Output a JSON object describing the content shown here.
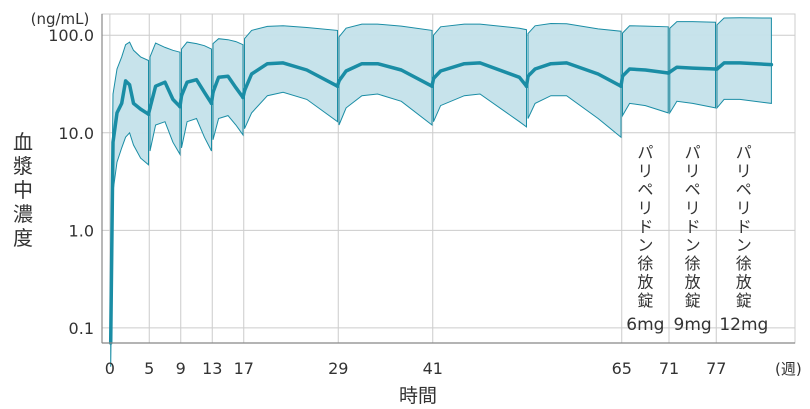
{
  "chart_data": {
    "type": "area",
    "y_unit": "(ng/mL)",
    "x_unit": "(週)",
    "xlabel": "時間",
    "ylabel": "血漿中濃度",
    "y_scale": "log",
    "ylim": [
      0.07,
      165
    ],
    "xlim": [
      -1,
      87
    ],
    "y_ticks": [
      0.1,
      1.0,
      10.0,
      100.0
    ],
    "y_tick_labels": [
      "0.1",
      "1.0",
      "10.0",
      "100.0"
    ],
    "x_ticks": [
      0,
      5,
      9,
      13,
      17,
      29,
      41,
      65,
      71,
      77
    ],
    "grid": true,
    "colors": {
      "line": "#1a8da5",
      "band": "#c4e1ea",
      "band_edge": "#1a8da5",
      "grid": "#cccccc",
      "axis": "#888888"
    },
    "series": [
      {
        "x": [
          0.1,
          0.4,
          0.9,
          1.5,
          2,
          2.5,
          3,
          3.9,
          4.9
        ],
        "median": [
          0.07,
          8,
          16,
          20,
          34,
          31,
          20,
          17.5,
          15.5
        ],
        "upper": [
          0.2,
          25,
          45,
          60,
          80,
          85,
          70,
          60,
          55
        ],
        "lower": [
          0.04,
          2.5,
          5,
          7,
          9,
          10,
          7.5,
          5.5,
          4.7
        ]
      },
      {
        "x": [
          5.1,
          5.8,
          7,
          8,
          8.9
        ],
        "median": [
          18,
          30,
          33,
          22,
          18.5
        ],
        "upper": [
          60,
          83,
          75,
          70,
          67
        ],
        "lower": [
          6.5,
          12,
          13,
          8,
          6
        ]
      },
      {
        "x": [
          9.1,
          9.8,
          11,
          12,
          12.9
        ],
        "median": [
          24,
          33,
          35,
          26,
          20
        ],
        "upper": [
          72,
          85,
          82,
          78,
          72
        ],
        "lower": [
          7,
          13,
          14,
          9,
          6.5
        ]
      },
      {
        "x": [
          13.1,
          13.8,
          15,
          16,
          16.9
        ],
        "median": [
          26,
          37,
          38,
          29,
          23
        ],
        "upper": [
          82,
          92,
          90,
          86,
          80
        ],
        "lower": [
          8.5,
          14,
          15,
          12,
          9.5
        ]
      },
      {
        "x": [
          17.1,
          18,
          20,
          22,
          25,
          28.9
        ],
        "median": [
          27,
          40,
          51,
          52,
          44,
          30
        ],
        "upper": [
          92,
          112,
          123,
          125,
          120,
          112
        ],
        "lower": [
          11,
          16,
          24,
          26,
          22,
          13
        ]
      },
      {
        "x": [
          29.1,
          30,
          32,
          34,
          37,
          40.9
        ],
        "median": [
          34,
          43,
          51,
          51,
          44,
          30
        ],
        "upper": [
          96,
          118,
          130,
          130,
          124,
          112
        ],
        "lower": [
          12,
          18,
          24,
          25,
          21,
          12
        ]
      },
      {
        "x": [
          41.1,
          42,
          45,
          47,
          52,
          52.9
        ],
        "median": [
          36,
          43,
          51,
          52,
          37,
          30
        ],
        "upper": [
          100,
          122,
          130,
          130,
          118,
          114
        ],
        "lower": [
          13,
          19,
          24,
          25,
          13,
          11.5
        ]
      },
      {
        "x": [
          53.1,
          54,
          56,
          58,
          62,
          64.9
        ],
        "median": [
          38,
          45,
          51,
          52,
          40,
          30
        ],
        "upper": [
          104,
          125,
          132,
          131,
          116,
          110
        ],
        "lower": [
          14,
          20,
          24,
          24,
          14,
          9
        ]
      },
      {
        "x": [
          65.1,
          66,
          68,
          70.9
        ],
        "median": [
          38,
          45,
          44,
          41
        ],
        "upper": [
          105,
          125,
          124,
          122
        ],
        "lower": [
          15,
          20,
          19,
          16
        ]
      },
      {
        "x": [
          71.1,
          72,
          74,
          76.9
        ],
        "median": [
          42,
          47,
          46,
          45
        ],
        "upper": [
          118,
          138,
          138,
          136
        ],
        "lower": [
          16,
          21,
          20,
          18
        ]
      },
      {
        "x": [
          77.1,
          78,
          80,
          84
        ],
        "median": [
          45,
          52,
          52,
          50
        ],
        "upper": [
          128,
          150,
          151,
          150
        ],
        "lower": [
          18,
          22,
          22,
          20
        ]
      }
    ],
    "annotations": [
      {
        "label": "パリペリドン徐放錠",
        "dose": "6mg",
        "x": 68
      },
      {
        "label": "パリペリドン徐放錠",
        "dose": "9mg",
        "x": 74
      },
      {
        "label": "パリペリドン徐放錠",
        "dose": "12mg",
        "x": 80.5
      }
    ]
  }
}
